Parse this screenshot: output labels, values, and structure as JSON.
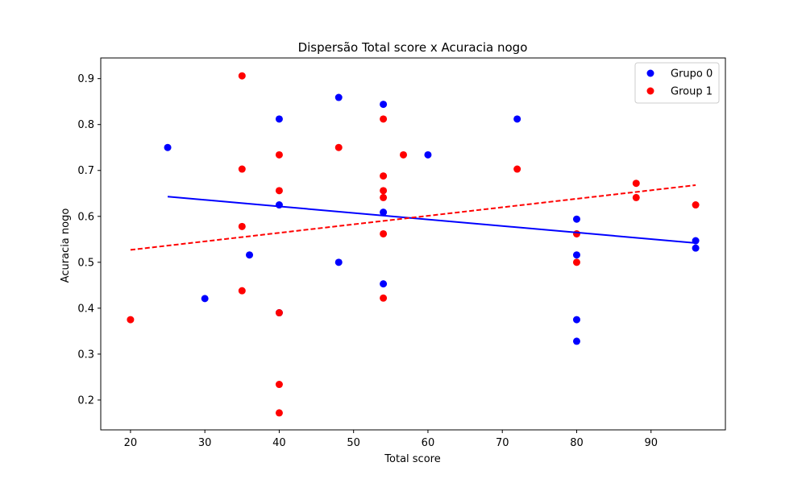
{
  "chart_data": {
    "type": "scatter",
    "title": "Dispersão Total score x Acuracia nogo",
    "xlabel": "Total score",
    "ylabel": "Acuracia nogo",
    "xlim": [
      16,
      100
    ],
    "ylim": [
      0.135,
      0.945
    ],
    "xticks": [
      20,
      30,
      40,
      50,
      60,
      70,
      80,
      90
    ],
    "yticks": [
      0.2,
      0.3,
      0.4,
      0.5,
      0.6,
      0.7,
      0.8,
      0.9
    ],
    "grid": false,
    "legend_position": "top-right",
    "series": [
      {
        "name": "Grupo 0",
        "color": "#0000ff",
        "points": [
          [
            25,
            0.75
          ],
          [
            30,
            0.421
          ],
          [
            36,
            0.516
          ],
          [
            40,
            0.812
          ],
          [
            40,
            0.625
          ],
          [
            40,
            0.39
          ],
          [
            48,
            0.859
          ],
          [
            48,
            0.5
          ],
          [
            54,
            0.844
          ],
          [
            54,
            0.609
          ],
          [
            54,
            0.453
          ],
          [
            60,
            0.734
          ],
          [
            72,
            0.812
          ],
          [
            80,
            0.594
          ],
          [
            80,
            0.516
          ],
          [
            80,
            0.375
          ],
          [
            80,
            0.328
          ],
          [
            96,
            0.547
          ],
          [
            96,
            0.531
          ]
        ],
        "trend": {
          "x": [
            25,
            96
          ],
          "y": [
            0.643,
            0.542
          ],
          "style": "solid"
        }
      },
      {
        "name": "Group 1",
        "color": "#ff0000",
        "points": [
          [
            20,
            0.375
          ],
          [
            35,
            0.906
          ],
          [
            35,
            0.703
          ],
          [
            35,
            0.578
          ],
          [
            35,
            0.438
          ],
          [
            40,
            0.734
          ],
          [
            40,
            0.656
          ],
          [
            40,
            0.39
          ],
          [
            40,
            0.234
          ],
          [
            40,
            0.172
          ],
          [
            48,
            0.75
          ],
          [
            54,
            0.812
          ],
          [
            54,
            0.688
          ],
          [
            54,
            0.656
          ],
          [
            54,
            0.641
          ],
          [
            54,
            0.562
          ],
          [
            54,
            0.422
          ],
          [
            56.7,
            0.734
          ],
          [
            72,
            0.703
          ],
          [
            80,
            0.562
          ],
          [
            80,
            0.5
          ],
          [
            88,
            0.672
          ],
          [
            88,
            0.641
          ],
          [
            96,
            0.625
          ]
        ],
        "trend": {
          "x": [
            20,
            96
          ],
          "y": [
            0.527,
            0.668
          ],
          "style": "dashed"
        }
      }
    ]
  }
}
